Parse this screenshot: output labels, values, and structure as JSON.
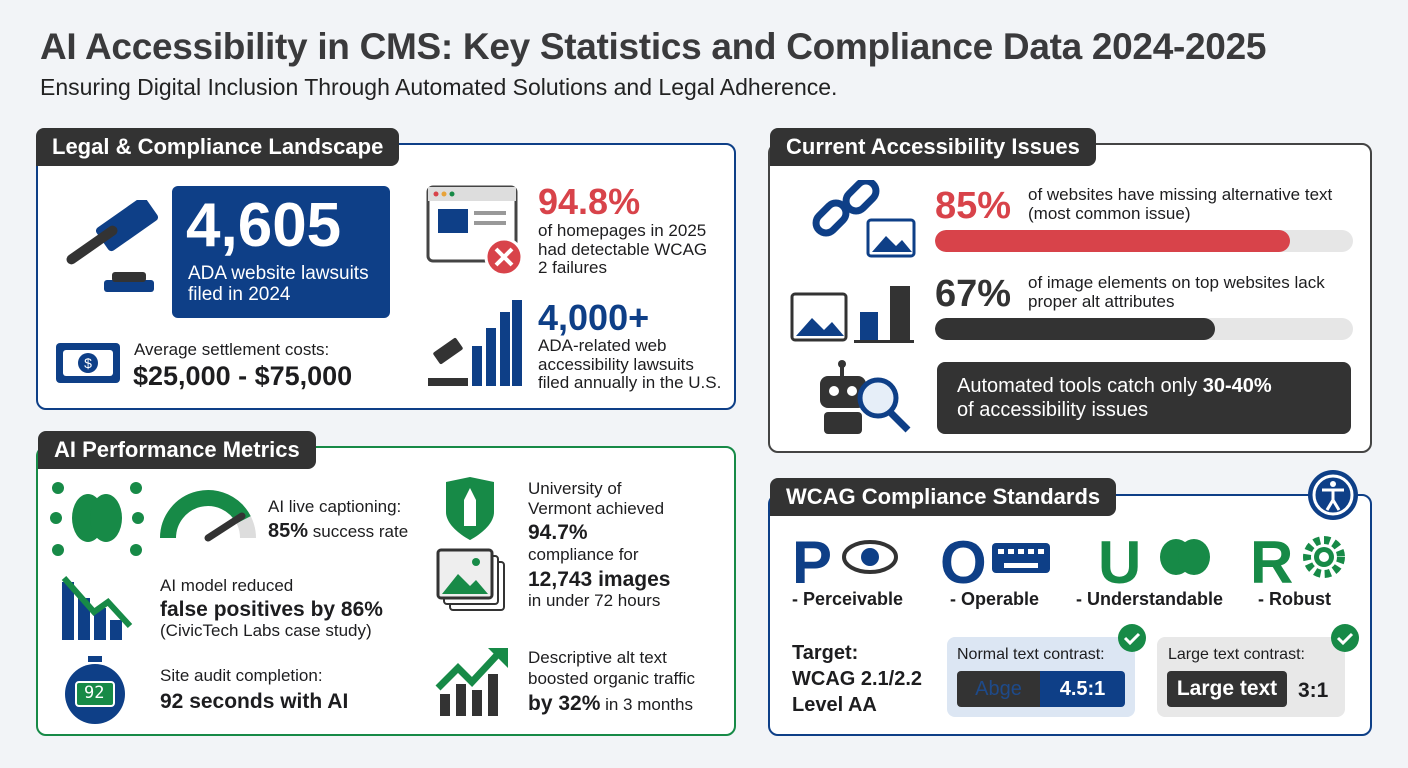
{
  "title": "AI Accessibility in CMS: Key Statistics and Compliance Data 2024-2025",
  "subtitle": "Ensuring Digital Inclusion Through Automated Solutions and Legal Adherence.",
  "colors": {
    "blue": "#0e3f87",
    "red": "#d8434a",
    "green": "#178a47",
    "dark": "#333333"
  },
  "legal": {
    "heading": "Legal & Compliance Landscape",
    "lawsuits_value": "4,605",
    "lawsuits_label": "ADA website lawsuits filed in 2024",
    "settlement_label": "Average settlement costs:",
    "settlement_value": "$25,000 - $75,000",
    "homepages_value": "94.8%",
    "homepages_label": "of homepages in 2025 had detectable WCAG 2 failures",
    "annual_value": "4,000+",
    "annual_label": "ADA-related web accessibility lawsuits filed annually in the U.S."
  },
  "issues": {
    "heading": "Current Accessibility Issues",
    "alt_value": "85%",
    "alt_label": "of websites have missing alternative text (most common issue)",
    "alt_percent": 85,
    "img_value": "67%",
    "img_label": "of image elements on top websites lack proper alt attributes",
    "img_percent": 67,
    "auto_pre": "Automated tools catch only ",
    "auto_value": "30-40%",
    "auto_post": "of accessibility issues"
  },
  "ai": {
    "heading": "AI Performance Metrics",
    "caption_label": "AI live captioning:",
    "caption_value": "85%",
    "caption_suffix": " success rate",
    "caption_percent": 85,
    "fp_label": "AI model reduced",
    "fp_value": "false positives by 86%",
    "fp_note": "(CivicTech Labs case study)",
    "audit_label": "Site audit completion:",
    "audit_value": "92 seconds with AI",
    "stopwatch": "92",
    "uvm_l1": "University of",
    "uvm_l2": "Vermont achieved",
    "uvm_value": "94.7%",
    "uvm_l3": "compliance for",
    "uvm_images": "12,743 images",
    "uvm_l4": "in under 72 hours",
    "traffic_l1": "Descriptive alt text",
    "traffic_l2": "boosted organic traffic",
    "traffic_value": "by 32%",
    "traffic_suffix": " in 3 months"
  },
  "wcag": {
    "heading": "WCAG Compliance Standards",
    "principles": [
      {
        "letter": "P",
        "label": "- Perceivable"
      },
      {
        "letter": "O",
        "label": "- Operable"
      },
      {
        "letter": "U",
        "label": "- Understandable"
      },
      {
        "letter": "R",
        "label": "- Robust"
      }
    ],
    "target_l1": "Target:",
    "target_l2": "WCAG 2.1/2.2",
    "target_l3": "Level AA",
    "normal_label": "Normal text contrast:",
    "normal_sample": "Abge",
    "normal_ratio": "4.5:1",
    "large_label": "Large text contrast:",
    "large_sample": "Large text",
    "large_ratio": "3:1"
  }
}
